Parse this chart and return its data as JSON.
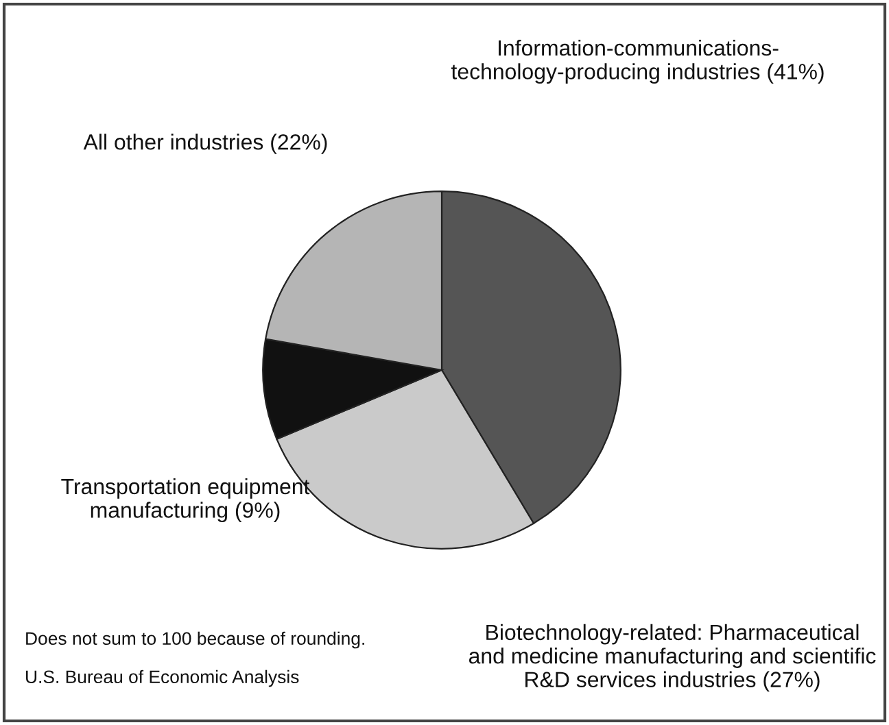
{
  "chart_data": {
    "type": "pie",
    "categories": [
      "Information-communications-\ntechnology-producing industries (41%)",
      "Biotechnology-related: Pharmaceutical\nand medicine manufacturing and scientific\nR&D services industries (27%)",
      "Transportation equipment\nmanufacturing (9%)",
      "All other industries (22%)"
    ],
    "values": [
      41,
      27,
      9,
      22
    ],
    "colors": [
      "#555555",
      "#cacaca",
      "#111111",
      "#b5b5b5"
    ],
    "annotations": [
      "Does not sum to 100 because of rounding.",
      "U.S. Bureau of Economic Analysis"
    ]
  }
}
